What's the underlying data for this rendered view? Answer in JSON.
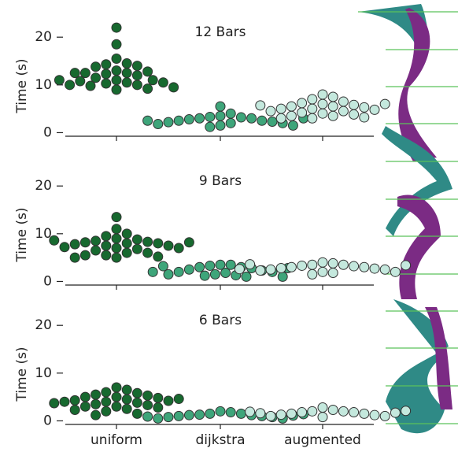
{
  "chart_data": [
    {
      "type": "swarm",
      "title": "12 Bars",
      "ylabel": "Time (s)",
      "colors": [
        "#17692f",
        "#3ea57a",
        "#c4e8dd"
      ],
      "values": [
        [
          22,
          18.5,
          15.5,
          14.5,
          14.3,
          14,
          13.8,
          13,
          12.8,
          12.5,
          12.5,
          12.3,
          12,
          11.5,
          11,
          11,
          10.8,
          10.5,
          10.5,
          10.3,
          10,
          10,
          9.8,
          9.5,
          9.2,
          9,
          12.5,
          11
        ],
        [
          5.5,
          4,
          3.5,
          3.3,
          3.2,
          3,
          3,
          2.8,
          2.5,
          2.5,
          2.3,
          2.2,
          2,
          2,
          1.8,
          1.5,
          1.5,
          1.2,
          2.5,
          3
        ],
        [
          8,
          7.5,
          7,
          6.5,
          6.2,
          6,
          5.8,
          5.5,
          5.5,
          5.3,
          5,
          5,
          4.8,
          4.5,
          4.5,
          4.2,
          4,
          3.8,
          3.5,
          3.5,
          3.2,
          3,
          3,
          6,
          5.7
        ]
      ],
      "ylim": [
        -0.75,
        23
      ],
      "yticks": [
        0,
        10,
        20
      ]
    },
    {
      "type": "swarm",
      "title": "9 Bars",
      "ylabel": "Time (s)",
      "colors": [
        "#17692f",
        "#3ea57a",
        "#c4e8dd"
      ],
      "values": [
        [
          13.5,
          11,
          10,
          9.5,
          9,
          8.8,
          8.5,
          8.3,
          8.2,
          8,
          8,
          7.8,
          7.5,
          7.5,
          7.2,
          7,
          7,
          6.8,
          6.5,
          6,
          6,
          5.5,
          5.5,
          5.2,
          5,
          5,
          8.6,
          8.2
        ],
        [
          3.5,
          3.5,
          3.3,
          3,
          3,
          2.8,
          2.5,
          2.3,
          2,
          2,
          1.8,
          1.5,
          1.5,
          1.3,
          1.2,
          1,
          1,
          3.2,
          2.8,
          2
        ],
        [
          4,
          3.8,
          3.5,
          3.5,
          3.3,
          3.2,
          3,
          3,
          2.8,
          2.7,
          2.5,
          2.5,
          2.3,
          2,
          2,
          1.8,
          1.5,
          3.6,
          3.4,
          2.6
        ]
      ],
      "ylim": [
        -0.75,
        23
      ],
      "yticks": [
        0,
        10,
        20
      ]
    },
    {
      "type": "swarm",
      "title": "6 Bars",
      "ylabel": "Time (s)",
      "categories": [
        "uniform",
        "dijkstra",
        "augmented"
      ],
      "colors": [
        "#17692f",
        "#3ea57a",
        "#c4e8dd"
      ],
      "values": [
        [
          7,
          6.5,
          6,
          5.8,
          5.5,
          5.3,
          5,
          5,
          4.8,
          4.5,
          4.3,
          4.2,
          4,
          4,
          3.8,
          3.5,
          3.3,
          3,
          3,
          2.8,
          2.5,
          2.3,
          2,
          1.5,
          1.2,
          4.6,
          3.7
        ],
        [
          2,
          1.8,
          1.5,
          1.5,
          1.3,
          1.2,
          1.2,
          1,
          1,
          0.8,
          0.8,
          0.5,
          0.5,
          1.1,
          0.9,
          1.4
        ],
        [
          2.8,
          2.3,
          2,
          2,
          1.8,
          1.8,
          1.5,
          1.5,
          1.3,
          1.2,
          1,
          1,
          0.8,
          1.6,
          1.7,
          1.9,
          2.1
        ]
      ],
      "ylim": [
        -0.75,
        23
      ],
      "yticks": [
        0,
        10,
        20
      ]
    }
  ]
}
